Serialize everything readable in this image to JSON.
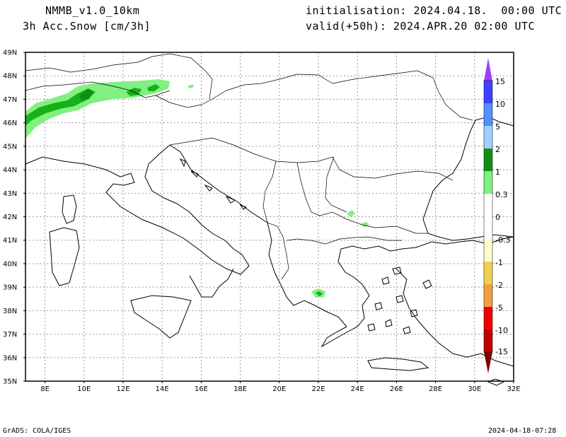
{
  "header": {
    "model": "NMMB_v1.0_10km",
    "field": "3h Acc.Snow [cm/3h]",
    "init": "initialisation: 2024.04.18.  00:00 UTC",
    "valid": "valid(+50h): 2024.APR.20 02:00 UTC"
  },
  "map": {
    "lat_labels": [
      "49N",
      "48N",
      "47N",
      "46N",
      "45N",
      "44N",
      "43N",
      "42N",
      "41N",
      "40N",
      "39N",
      "38N",
      "37N",
      "36N",
      "35N"
    ],
    "lon_labels": [
      "8E",
      "10E",
      "12E",
      "14E",
      "16E",
      "18E",
      "20E",
      "22E",
      "24E",
      "26E",
      "28E",
      "30E",
      "32E"
    ]
  },
  "colorbar": {
    "labels": [
      "15",
      "10",
      "5",
      "2",
      "1",
      "0.3",
      "0",
      "-0.3",
      "-1",
      "-2",
      "-5",
      "-10",
      "-15"
    ],
    "colors": {
      "violet": "#a040ff",
      "blue_dark": "#4040ff",
      "blue": "#5090ff",
      "blue_light": "#a0d0ff",
      "green_dark": "#109010",
      "green": "#18b018",
      "green_light": "#80f080",
      "white": "#ffffff",
      "cream": "#fffcd0",
      "yellow": "#f0d050",
      "orange": "#f0a040",
      "orange_dark": "#f07030",
      "red": "#f00000",
      "red_dark": "#c00000",
      "maroon": "#800000"
    }
  },
  "footer": {
    "left": "GrADS: COLA/IGES",
    "right": "2024-04-18-07:28"
  }
}
